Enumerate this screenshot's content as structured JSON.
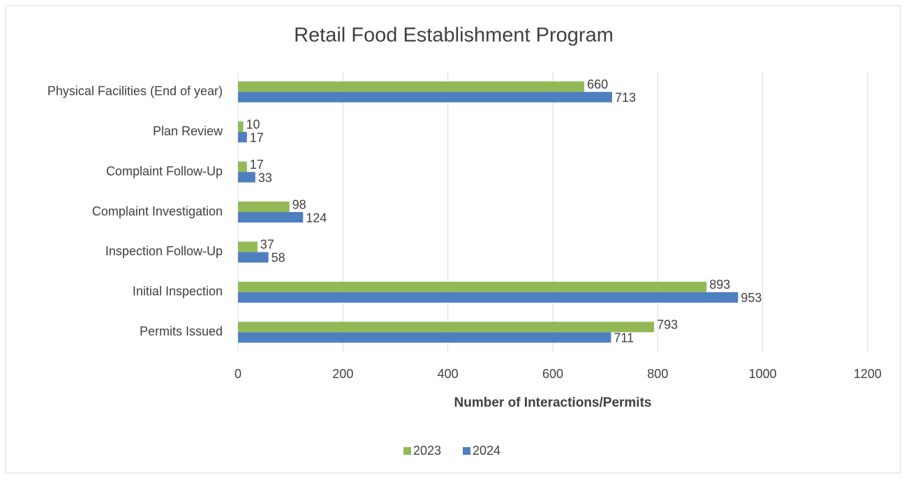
{
  "chart_data": {
    "type": "hbar",
    "title": "Retail Food Establishment Program",
    "x_label": "Number of Interactions/Permits",
    "categories": [
      "Physical Facilities (End of year)",
      "Plan Review",
      "Complaint Follow-Up",
      "Complaint Investigation",
      "Inspection Follow-Up",
      "Initial Inspection",
      "Permits Issued"
    ],
    "series": [
      {
        "name": "2023",
        "color": "#92b956",
        "values": [
          660,
          10,
          17,
          98,
          37,
          893,
          793
        ]
      },
      {
        "name": "2024",
        "color": "#4e7fc0",
        "values": [
          713,
          17,
          33,
          124,
          58,
          953,
          711
        ]
      }
    ],
    "xlim": [
      0,
      1200
    ],
    "xticks": [
      0,
      200,
      400,
      600,
      800,
      1000,
      1200
    ],
    "grid": true,
    "legend": "bottom"
  }
}
